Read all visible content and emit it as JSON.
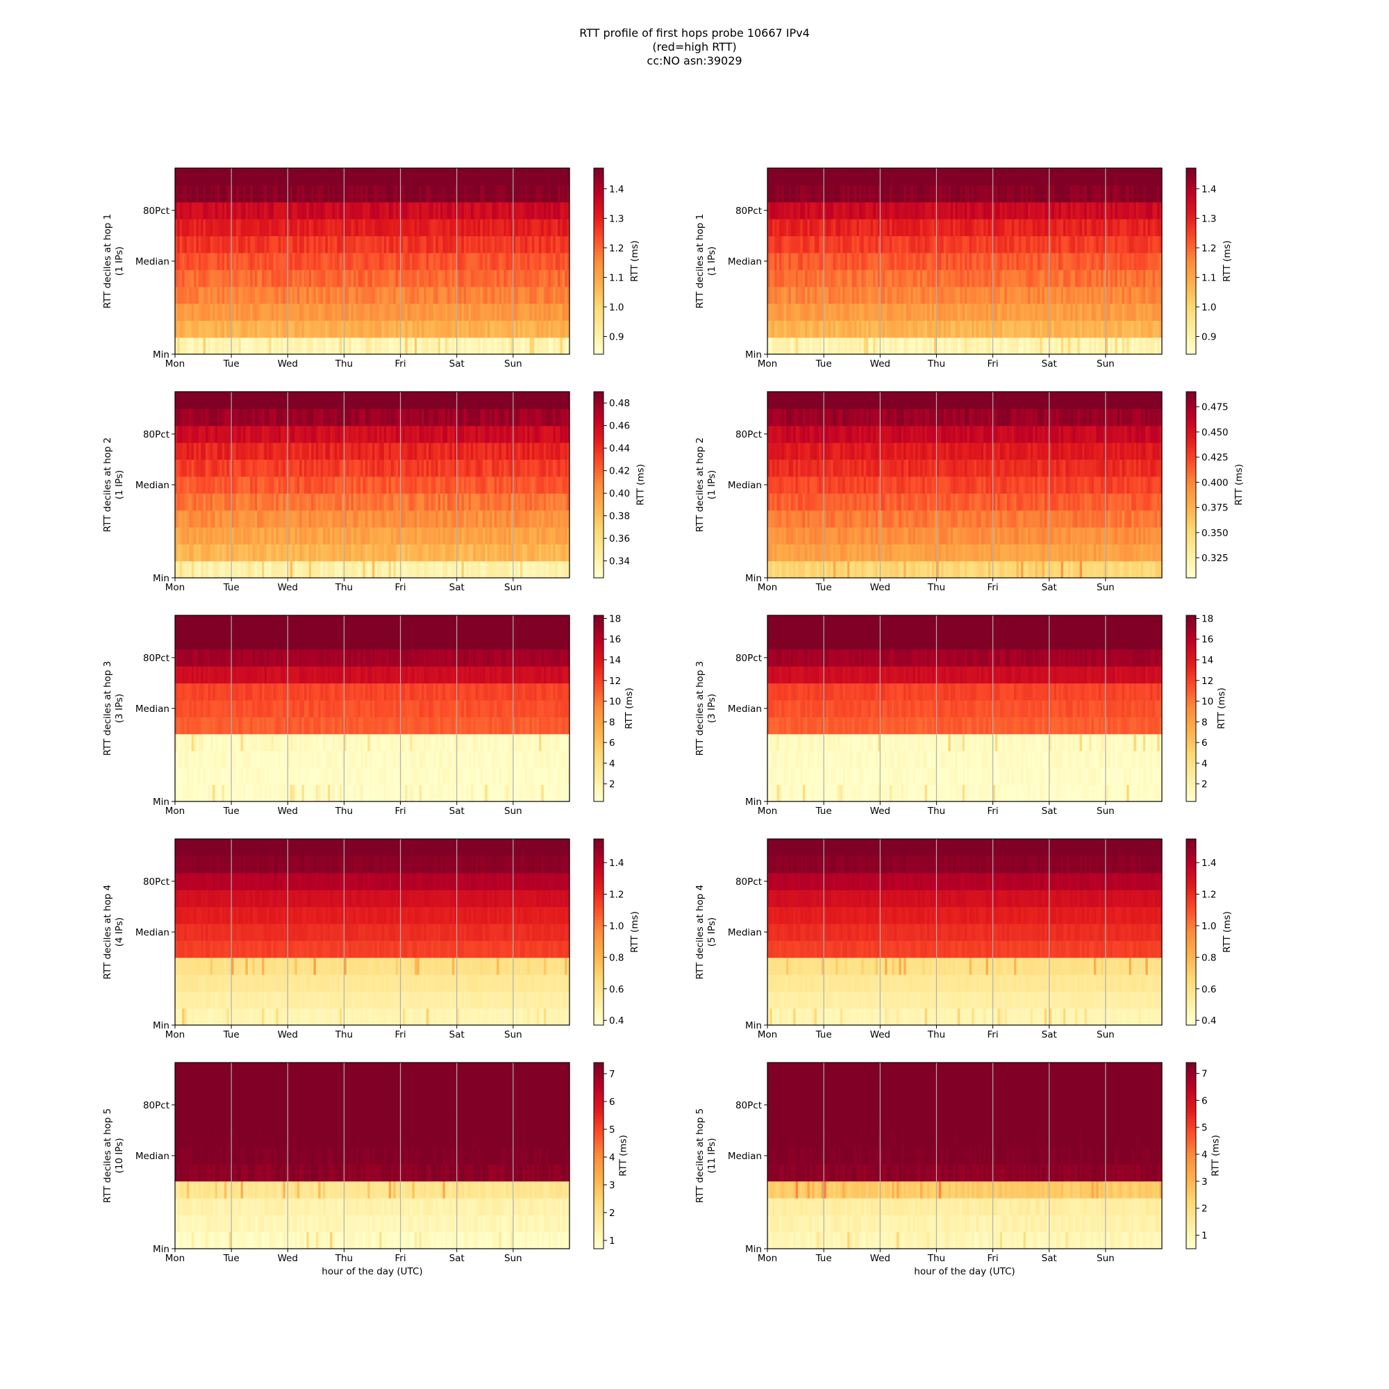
{
  "title_lines": [
    "RTT profile of first hops probe 10667 IPv4",
    "(red=high RTT)",
    "cc:NO asn:39029"
  ],
  "colorbar_label": "RTT (ms)",
  "xlabel": "hour of the day (UTC)",
  "day_ticks": [
    "Mon",
    "Tue",
    "Wed",
    "Thu",
    "Fri",
    "Sat",
    "Sun"
  ],
  "y_ticks": [
    "Min",
    "Median",
    "80Pct"
  ],
  "colormap": {
    "name": "YlOrRd",
    "stops": [
      "#ffffcc",
      "#ffeda0",
      "#fed976",
      "#feb24c",
      "#fd8d3c",
      "#fc4e2a",
      "#e31a1c",
      "#bd0026",
      "#800026"
    ]
  },
  "chart_data": [
    {
      "type": "heatmap",
      "hop": 1,
      "side": "left",
      "ylabel": "RTT deciles at hop 1",
      "ylabel_sub": "(1 IPs)",
      "colorbar_ticks": [
        "0.9",
        "1.0",
        "1.1",
        "1.2",
        "1.3",
        "1.4"
      ],
      "colorbar_range": [
        0.84,
        1.47
      ],
      "decile_rtt_ms": [
        0.88,
        1.08,
        1.13,
        1.17,
        1.2,
        1.23,
        1.27,
        1.31,
        1.36,
        1.46,
        1.52
      ],
      "noise": 0.03
    },
    {
      "type": "heatmap",
      "hop": 1,
      "side": "right",
      "ylabel": "RTT deciles at hop 1",
      "ylabel_sub": "(1 IPs)",
      "colorbar_ticks": [
        "0.9",
        "1.0",
        "1.1",
        "1.2",
        "1.3",
        "1.4"
      ],
      "colorbar_range": [
        0.84,
        1.47
      ],
      "decile_rtt_ms": [
        0.88,
        1.07,
        1.12,
        1.16,
        1.19,
        1.22,
        1.26,
        1.3,
        1.36,
        1.46,
        1.52
      ],
      "noise": 0.03
    },
    {
      "type": "heatmap",
      "hop": 2,
      "side": "left",
      "ylabel": "RTT deciles at hop 2",
      "ylabel_sub": "(1 IPs)",
      "colorbar_ticks": [
        "0.34",
        "0.36",
        "0.38",
        "0.40",
        "0.42",
        "0.44",
        "0.46",
        "0.48"
      ],
      "colorbar_range": [
        0.325,
        0.49
      ],
      "decile_rtt_ms": [
        0.34,
        0.385,
        0.395,
        0.405,
        0.415,
        0.425,
        0.435,
        0.445,
        0.46,
        0.48,
        0.5
      ],
      "noise": 0.008
    },
    {
      "type": "heatmap",
      "hop": 2,
      "side": "right",
      "ylabel": "RTT deciles at hop 2",
      "ylabel_sub": "(1 IPs)",
      "colorbar_ticks": [
        "0.325",
        "0.350",
        "0.375",
        "0.400",
        "0.425",
        "0.450",
        "0.475"
      ],
      "colorbar_range": [
        0.305,
        0.49
      ],
      "decile_rtt_ms": [
        0.35,
        0.385,
        0.395,
        0.405,
        0.415,
        0.425,
        0.435,
        0.445,
        0.46,
        0.48,
        0.5
      ],
      "noise": 0.008
    },
    {
      "type": "heatmap",
      "hop": 3,
      "side": "left",
      "ylabel": "RTT deciles at hop 3",
      "ylabel_sub": "(3 IPs)",
      "colorbar_ticks": [
        "2",
        "4",
        "6",
        "8",
        "10",
        "12",
        "14",
        "16",
        "18"
      ],
      "colorbar_range": [
        0.3,
        18.3
      ],
      "decile_rtt_ms": [
        0.5,
        0.6,
        0.7,
        0.8,
        11.0,
        11.5,
        12.0,
        15.0,
        17.0,
        19.0,
        20.0
      ],
      "noise": 0.5
    },
    {
      "type": "heatmap",
      "hop": 3,
      "side": "right",
      "ylabel": "RTT deciles at hop 3",
      "ylabel_sub": "(3 IPs)",
      "colorbar_ticks": [
        "2",
        "4",
        "6",
        "8",
        "10",
        "12",
        "14",
        "16",
        "18"
      ],
      "colorbar_range": [
        0.3,
        18.3
      ],
      "decile_rtt_ms": [
        0.5,
        0.6,
        0.7,
        0.8,
        11.0,
        11.5,
        12.0,
        15.0,
        17.0,
        19.0,
        20.0
      ],
      "noise": 0.5
    },
    {
      "type": "heatmap",
      "hop": 4,
      "side": "left",
      "ylabel": "RTT deciles at hop 4",
      "ylabel_sub": "(4 IPs)",
      "colorbar_ticks": [
        "0.4",
        "0.6",
        "0.8",
        "1.0",
        "1.2",
        "1.4"
      ],
      "colorbar_range": [
        0.37,
        1.55
      ],
      "decile_rtt_ms": [
        0.45,
        0.5,
        0.55,
        0.6,
        1.15,
        1.2,
        1.25,
        1.32,
        1.42,
        1.52,
        1.6
      ],
      "noise": 0.02
    },
    {
      "type": "heatmap",
      "hop": 4,
      "side": "right",
      "ylabel": "RTT deciles at hop 4",
      "ylabel_sub": "(5 IPs)",
      "colorbar_ticks": [
        "0.4",
        "0.6",
        "0.8",
        "1.0",
        "1.2",
        "1.4"
      ],
      "colorbar_range": [
        0.37,
        1.55
      ],
      "decile_rtt_ms": [
        0.45,
        0.5,
        0.55,
        0.6,
        1.15,
        1.2,
        1.25,
        1.32,
        1.42,
        1.52,
        1.6
      ],
      "noise": 0.02
    },
    {
      "type": "heatmap",
      "hop": 5,
      "side": "left",
      "ylabel": "RTT deciles at hop 5",
      "ylabel_sub": "(10 IPs)",
      "colorbar_ticks": [
        "1",
        "2",
        "3",
        "4",
        "5",
        "6",
        "7"
      ],
      "colorbar_range": [
        0.7,
        7.4
      ],
      "decile_rtt_ms": [
        0.9,
        1.1,
        1.3,
        1.8,
        7.2,
        7.4,
        7.5,
        7.6,
        7.7,
        7.8,
        7.9
      ],
      "noise": 0.2
    },
    {
      "type": "heatmap",
      "hop": 5,
      "side": "right",
      "ylabel": "RTT deciles at hop 5",
      "ylabel_sub": "(11 IPs)",
      "colorbar_ticks": [
        "1",
        "2",
        "3",
        "4",
        "5",
        "6",
        "7"
      ],
      "colorbar_range": [
        0.5,
        7.4
      ],
      "decile_rtt_ms": [
        0.9,
        1.1,
        1.3,
        2.5,
        7.2,
        7.4,
        7.5,
        7.6,
        7.7,
        7.8,
        7.9
      ],
      "noise": 0.2
    }
  ]
}
